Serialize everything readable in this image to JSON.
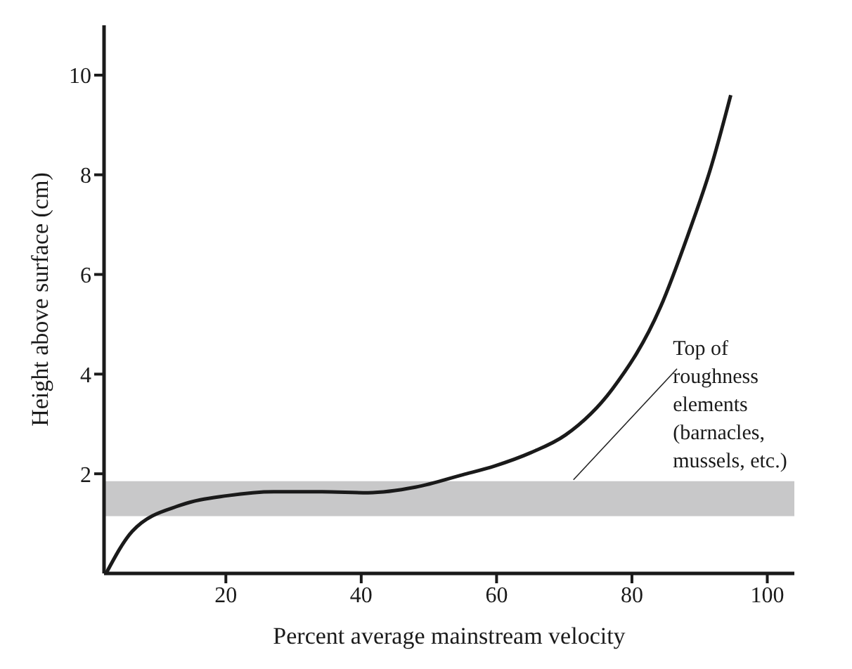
{
  "chart_data": {
    "type": "line",
    "xlabel": "Percent average mainstream velocity",
    "ylabel": "Height above surface (cm)",
    "x": [
      2.3,
      6.2,
      13.3,
      20.2,
      27.1,
      34.2,
      41,
      48,
      55,
      59.8,
      65,
      70.2,
      77.1,
      84.2,
      88.3,
      91.7,
      94.6
    ],
    "series": [
      {
        "color": "#1a1a1a",
        "values": [
          0,
          0.85,
          1.37,
          1.56,
          1.64,
          1.64,
          1.62,
          1.73,
          1.98,
          2.16,
          2.42,
          2.78,
          3.7,
          5.34,
          6.8,
          8.16,
          9.6
        ]
      }
    ],
    "xlim": [
      2,
      104
    ],
    "ylim": [
      0,
      11
    ],
    "xticks": [
      20,
      40,
      60,
      80,
      100
    ],
    "yticks": [
      2,
      4,
      6,
      8,
      10
    ],
    "bands": [
      {
        "axis": "y",
        "from": 1.15,
        "to": 1.85,
        "color": "#c8c8c9",
        "label": "Top of roughness elements (barnacles, mussels, etc.)"
      }
    ],
    "grid": false,
    "legend": false,
    "marker": "none",
    "line_style": "solid"
  }
}
